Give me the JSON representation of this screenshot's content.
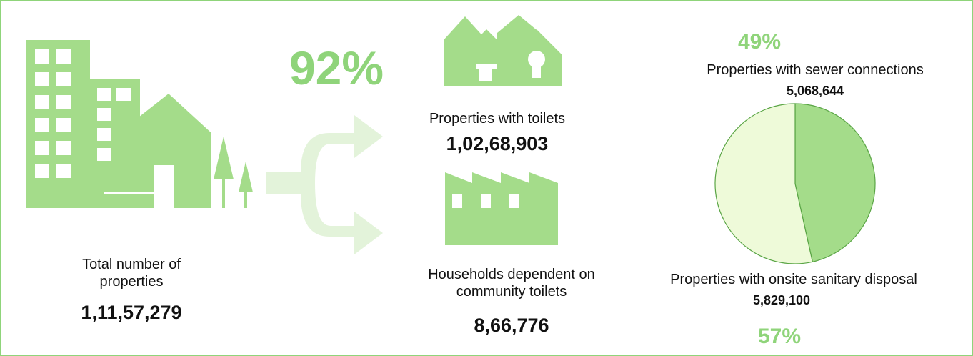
{
  "total": {
    "label": "Total number of properties",
    "value": "1,11,57,279"
  },
  "toilets": {
    "percent": "92%",
    "label": "Properties with toilets",
    "value": "1,02,68,903"
  },
  "community": {
    "label": "Households dependent on community toilets",
    "value": "8,66,776"
  },
  "pie": {
    "slices": [
      {
        "name": "Properties with sewer connections",
        "value": 5068644,
        "value_label": "5,068,644",
        "percent": "49%",
        "color": "#a4dc8a"
      },
      {
        "name": "Properties with onsite sanitary disposal",
        "value": 5829100,
        "value_label": "5,829,100",
        "percent": "57%",
        "color": "#eefad9"
      }
    ]
  }
}
